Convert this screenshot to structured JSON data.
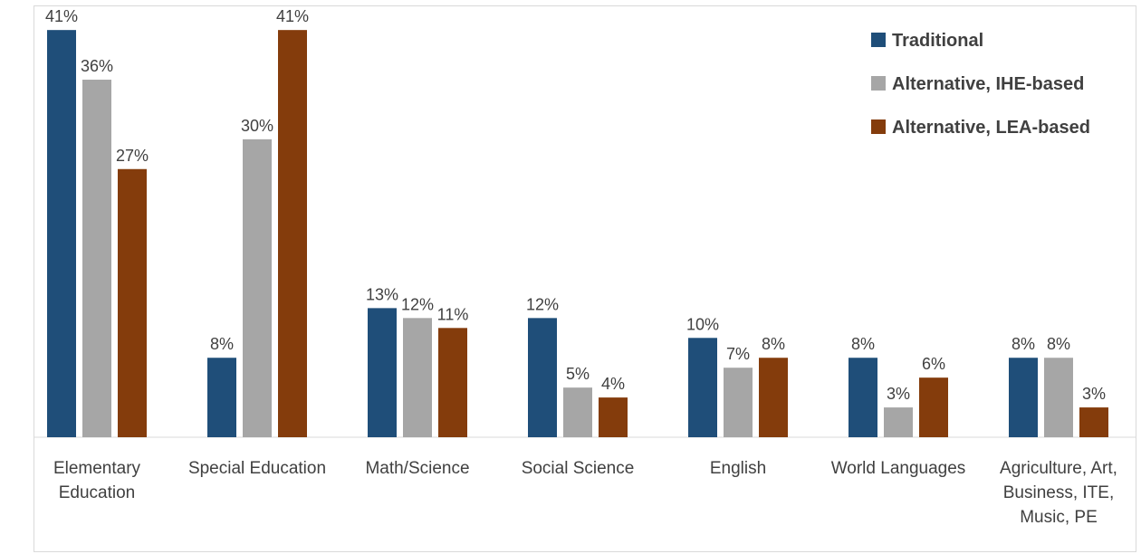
{
  "chart_data": {
    "type": "bar",
    "title": "",
    "xlabel": "",
    "ylabel": "",
    "ylim": [
      0,
      42
    ],
    "grid": false,
    "legend_position": "top-right",
    "categories": [
      [
        "Elementary",
        "Education"
      ],
      [
        "Special Education"
      ],
      [
        "Math/Science"
      ],
      [
        "Social Science"
      ],
      [
        "English"
      ],
      [
        "World Languages"
      ],
      [
        "Agriculture, Art,",
        "Business, ITE,",
        "Music, PE"
      ]
    ],
    "series": [
      {
        "name": "Traditional",
        "color": "#1f4e79",
        "values": [
          41,
          8,
          13,
          12,
          10,
          8,
          8
        ],
        "labels": [
          "41%",
          "8%",
          "13%",
          "12%",
          "10%",
          "8%",
          "8%"
        ]
      },
      {
        "name": "Alternative, IHE-based",
        "color": "#a6a6a6",
        "values": [
          36,
          30,
          12,
          5,
          7,
          3,
          8
        ],
        "labels": [
          "36%",
          "30%",
          "12%",
          "5%",
          "7%",
          "3%",
          "8%"
        ]
      },
      {
        "name": "Alternative, LEA-based",
        "color": "#843c0c",
        "values": [
          27,
          41,
          11,
          4,
          8,
          6,
          3
        ],
        "labels": [
          "27%",
          "41%",
          "11%",
          "4%",
          "8%",
          "6%",
          "3%"
        ]
      }
    ]
  }
}
